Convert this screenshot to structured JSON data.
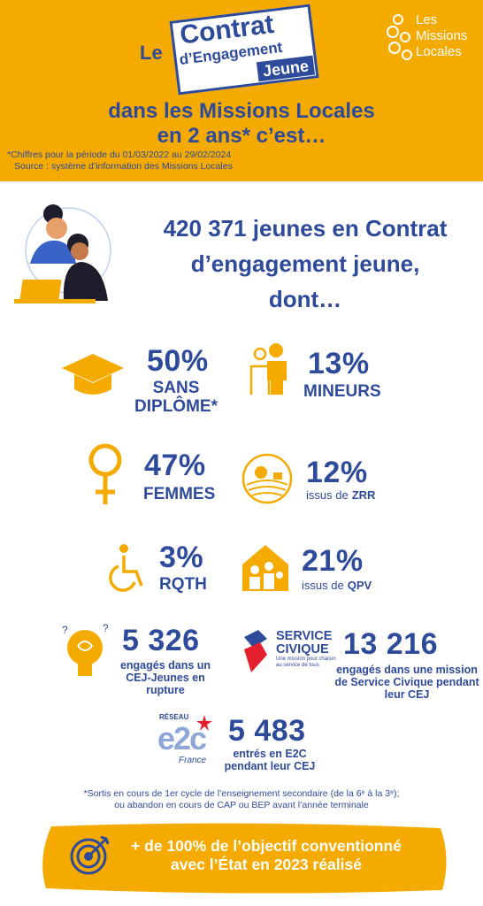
{
  "header": {
    "le": "Le",
    "badge": [
      "Contrat",
      "d’Engagement",
      "Jeune"
    ],
    "logo": [
      "Les",
      "Missions",
      "Locales"
    ],
    "subtitle": [
      "dans les Missions Locales",
      "en 2 ans* c’est…"
    ],
    "notes": [
      "*Chiffres pour la période du 01/03/2022 au 29/02/2024",
      "Source : système d’information des Missions Locales"
    ]
  },
  "intro": [
    "420 371 jeunes en Contrat",
    "d’engagement jeune,",
    "dont…"
  ],
  "stats": [
    {
      "value": "50%",
      "label": [
        "SANS",
        "DIPLÔME*"
      ]
    },
    {
      "value": "13%",
      "label": [
        "MINEURS"
      ]
    },
    {
      "value": "47%",
      "label": [
        "FEMMES"
      ]
    },
    {
      "value": "12%",
      "prefix": "issus de",
      "strong": "ZRR"
    },
    {
      "value": "3%",
      "label": [
        "RQTH"
      ]
    },
    {
      "value": "21%",
      "prefix": "issus de",
      "strong": "QPV"
    },
    {
      "value": "5 326",
      "label": [
        "engagés dans un",
        "CEJ-Jeunes en",
        "rupture"
      ]
    },
    {
      "value": "13 216",
      "label": [
        "engagés dans une mission",
        "de Service Civique pendant",
        "leur CEJ"
      ]
    },
    {
      "value": "5 483",
      "label": [
        "entrés en E2C",
        "pendant leur CEJ"
      ]
    }
  ],
  "service_civique_logo": [
    "SERVICE",
    "CIVIQUE",
    "Une mission pour chacun",
    "au service de tous"
  ],
  "e2c_logo": [
    "RÉSEAU",
    "e2c",
    "France"
  ],
  "footnote": [
    "*Sortis en cours de 1er cycle de l’enseignement secondaire (de la 6ᵉ à la 3ᵉ);",
    "ou abandon en cours de CAP ou BEP avant l’année terminale"
  ],
  "banner": [
    "+ de 100% de l’objectif conventionné",
    "avec l’État en 2023 réalisé"
  ]
}
